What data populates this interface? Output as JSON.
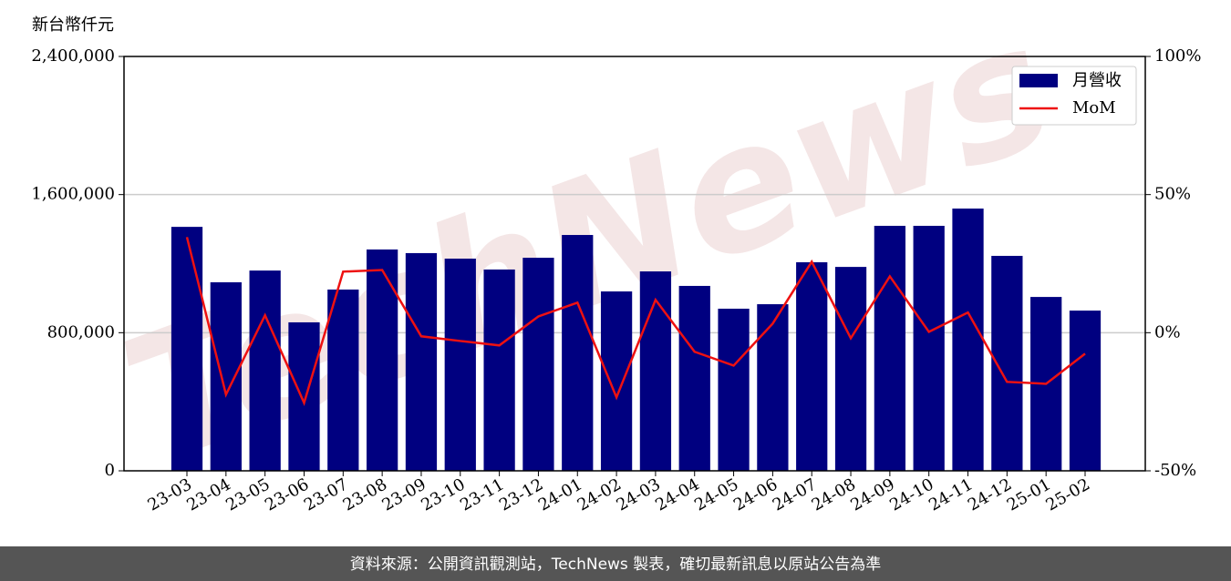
{
  "chart_data": {
    "type": "bar_line",
    "y_label": "新台幣仟元",
    "categories": [
      "23-03",
      "23-04",
      "23-05",
      "23-06",
      "23-07",
      "23-08",
      "23-09",
      "23-10",
      "23-11",
      "23-12",
      "24-01",
      "24-02",
      "24-03",
      "24-04",
      "24-05",
      "24-06",
      "24-07",
      "24-08",
      "24-09",
      "24-10",
      "24-11",
      "24-12",
      "25-01",
      "25-02"
    ],
    "series": [
      {
        "name": "月營收",
        "type": "bar",
        "color": "#000080",
        "values": [
          1413000,
          1092000,
          1160000,
          860000,
          1050000,
          1282000,
          1261000,
          1229000,
          1166000,
          1234000,
          1366000,
          1039000,
          1155000,
          1071000,
          939000,
          965000,
          1208000,
          1181000,
          1419000,
          1419000,
          1519000,
          1245000,
          1007000,
          928000
        ]
      },
      {
        "name": "MoM",
        "type": "line",
        "axis": "y2",
        "color": "#ee1111",
        "values": [
          34.6,
          -22.4,
          6.3,
          -25.4,
          22.1,
          22.7,
          -1.3,
          -3,
          -4.6,
          5.9,
          10.9,
          -23.4,
          11.9,
          -6.9,
          -11.9,
          3.3,
          25.7,
          -2,
          20.4,
          0.3,
          7.3,
          -17.8,
          -18.5,
          -7.6
        ]
      }
    ],
    "ylim": [
      0,
      2400000
    ],
    "yticks": [
      0,
      {
        "value": 800000,
        "label": "800,000"
      },
      {
        "value": 1600000,
        "label": "1,600,000"
      },
      {
        "value": 2400000,
        "label": "2,400,000"
      }
    ],
    "y2lim": [
      -50,
      100
    ],
    "y2ticks": [
      {
        "value": -50,
        "label": "-50%"
      },
      {
        "value": 0,
        "label": "0%"
      },
      {
        "value": 50,
        "label": "50%"
      },
      {
        "value": 100,
        "label": "100%"
      }
    ],
    "grid": true,
    "legend": "upper right",
    "watermark": "TechNews",
    "footer": "資料來源：公開資訊觀測站，TechNews 製表，確切最新訊息以原站公告為準"
  }
}
